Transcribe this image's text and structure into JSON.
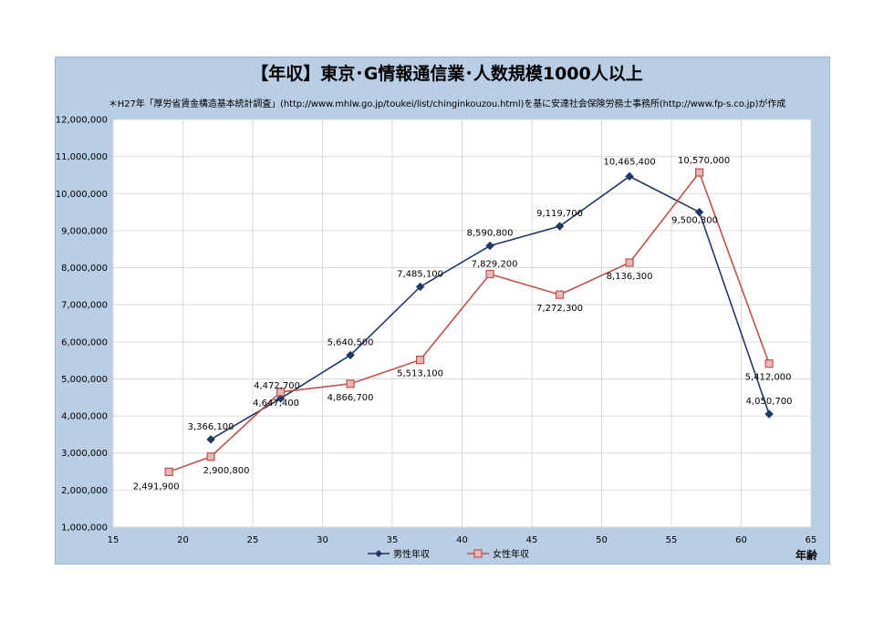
{
  "title": "【年収】東京･G情報通信業･人数規模1000人以上",
  "source_note": "＊H27年「厚労省賃金構造基本統計調査」(http://www.mhlw.go.jp/toukei/list/chinginkouzou.html)を基に安達社会保険労務士事務所(http://www.fp-s.co.jp)が作成",
  "chart_data": {
    "type": "line",
    "title": "【年収】東京･G情報通信業･人数規模1000人以上",
    "xlabel": "年齢",
    "ylabel": "",
    "xlim": [
      15,
      65
    ],
    "ylim": [
      1000000,
      12000000
    ],
    "x_ticks": [
      "15",
      "20",
      "25",
      "30",
      "35",
      "40",
      "45",
      "50",
      "55",
      "60",
      "65"
    ],
    "y_ticks": [
      "1,000,000",
      "2,000,000",
      "3,000,000",
      "4,000,000",
      "5,000,000",
      "6,000,000",
      "7,000,000",
      "8,000,000",
      "9,000,000",
      "10,000,000",
      "11,000,000",
      "12,000,000"
    ],
    "grid": true,
    "legend": "bottom",
    "series": [
      {
        "name": "男性年収",
        "color": "#1f3864",
        "marker": "diamond",
        "x": [
          22,
          27,
          32,
          37,
          42,
          47,
          52,
          57,
          62
        ],
        "y": [
          3366100,
          4472700,
          5640500,
          7485100,
          8590800,
          9119700,
          10465400,
          9500300,
          4050700
        ],
        "labels": [
          "3,366,100",
          "4,472,700",
          "5,640,500",
          "7,485,100",
          "8,590,800",
          "9,119,700",
          "10,465,400",
          "9,500,300",
          "4,050,700"
        ]
      },
      {
        "name": "女性年収",
        "color": "#c0504d",
        "marker": "square",
        "x": [
          19,
          22,
          27,
          32,
          37,
          42,
          47,
          52,
          57,
          62
        ],
        "y": [
          2491900,
          2900800,
          4647400,
          4866700,
          5513100,
          7829200,
          7272300,
          8136300,
          10570000,
          5412000
        ],
        "labels": [
          "2,491,900",
          "2,900,800",
          "4,647,400",
          "4,866,700",
          "5,513,100",
          "7,829,200",
          "7,272,300",
          "8,136,300",
          "10,570,000",
          "5,412,000"
        ]
      }
    ]
  }
}
